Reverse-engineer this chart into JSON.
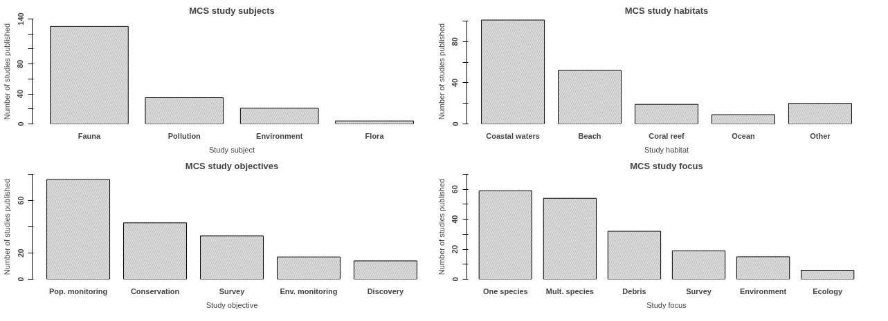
{
  "chart_data": [
    {
      "type": "bar",
      "title": "MCS study subjects",
      "xlabel": "Study subject",
      "ylabel": "Number of studies published",
      "categories": [
        "Fauna",
        "Pollution",
        "Environment",
        "Flora"
      ],
      "values": [
        130,
        35,
        21,
        4
      ],
      "color": "#dcdcdc",
      "ylim": [
        0,
        140
      ],
      "yticks": [
        0,
        {
          "value": 20,
          "label": null
        },
        40,
        {
          "value": 60,
          "label": null
        },
        80,
        {
          "value": 100,
          "label": null
        },
        {
          "value": 120,
          "label": null
        },
        140
      ],
      "grid": false
    },
    {
      "type": "bar",
      "title": "MCS study habitats",
      "xlabel": "Study habitat",
      "ylabel": "Number of studies published",
      "categories": [
        "Coastal waters",
        "Beach",
        "Coral reef",
        "Ocean",
        "Other"
      ],
      "values": [
        101,
        52,
        19,
        9,
        20
      ],
      "color": "#dcdcdc",
      "ylim": [
        0,
        102
      ],
      "yticks": [
        0,
        {
          "value": 20,
          "label": null
        },
        40,
        {
          "value": 60,
          "label": null
        },
        80,
        {
          "value": 100,
          "label": null
        }
      ],
      "grid": false
    },
    {
      "type": "bar",
      "title": "MCS study objectives",
      "xlabel": "Study objective",
      "ylabel": "Number of studies published",
      "categories": [
        "Pop. monitoring",
        "Conservation",
        "Survey",
        "Env. monitoring",
        "Discovery"
      ],
      "values": [
        76,
        43,
        33,
        17,
        14
      ],
      "color": "#dcdcdc",
      "ylim": [
        0,
        80
      ],
      "yticks": [
        0,
        20,
        {
          "value": 40,
          "label": null
        },
        60,
        {
          "value": 80,
          "label": null
        }
      ],
      "grid": false
    },
    {
      "type": "bar",
      "title": "MCS study focus",
      "xlabel": "Study focus",
      "ylabel": "Number of studies published",
      "categories": [
        "One species",
        "Mult. species",
        "Debris",
        "Survey",
        "Environment",
        "Ecology"
      ],
      "values": [
        59,
        54,
        32,
        19,
        15,
        6
      ],
      "color": "#dcdcdc",
      "ylim": [
        0,
        70
      ],
      "yticks": [
        0,
        {
          "value": 10,
          "label": null
        },
        20,
        {
          "value": 30,
          "label": null
        },
        40,
        {
          "value": 50,
          "label": null
        },
        60,
        {
          "value": 70,
          "label": null
        }
      ],
      "grid": false
    }
  ]
}
